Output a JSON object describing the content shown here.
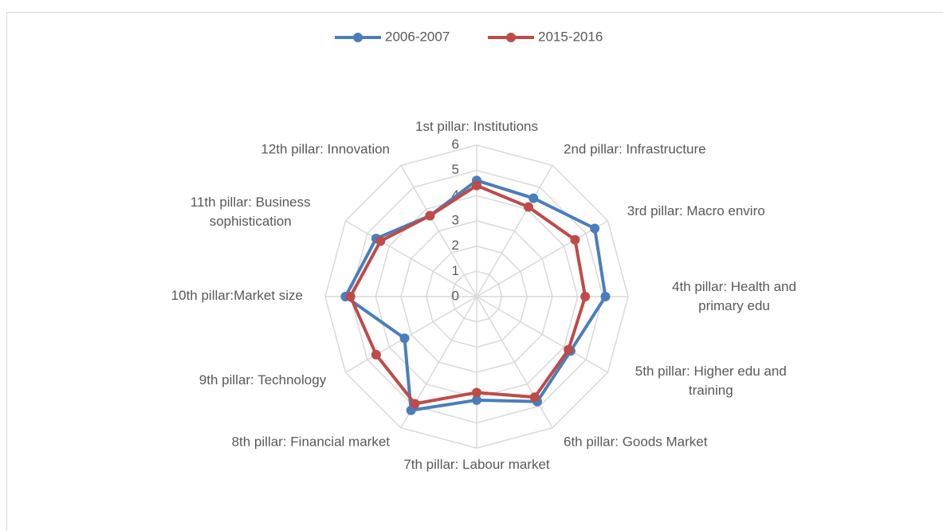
{
  "chart_data": {
    "type": "radar",
    "categories": [
      "1st pillar: Institutions",
      "2nd pillar: Infrastructure",
      "3rd pillar: Macro enviro",
      "4th pillar: Health and primary edu",
      "5th pillar: Higher edu and training",
      "6th pillar: Goods Market",
      "7th pillar: Labour market",
      "8th pillar: Financial market",
      "9th pillar: Technology",
      "10th pillar:Market size",
      "11th pillar: Business sophistication",
      "12th pillar: Innovation"
    ],
    "series": [
      {
        "name": "2006-2007",
        "color": "#4a7ebb",
        "values": [
          4.6,
          4.5,
          5.4,
          5.1,
          4.3,
          4.8,
          4.1,
          5.2,
          3.3,
          5.2,
          4.6,
          3.7
        ]
      },
      {
        "name": "2015-2016",
        "color": "#be4b48",
        "values": [
          4.4,
          4.1,
          4.5,
          4.3,
          4.2,
          4.6,
          3.8,
          4.9,
          4.6,
          5.0,
          4.4,
          3.7
        ]
      }
    ],
    "ylim": [
      0,
      6
    ],
    "yticks": [
      0,
      1,
      2,
      3,
      4,
      5,
      6
    ],
    "grid": true,
    "legend": "top"
  }
}
